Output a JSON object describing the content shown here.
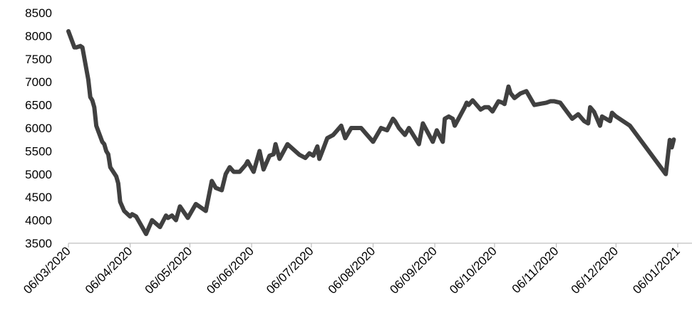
{
  "chart_data": {
    "type": "line",
    "title": "",
    "xlabel": "",
    "ylabel": "",
    "ylim": [
      3500,
      8500
    ],
    "yticks": [
      "3500",
      "4000",
      "4500",
      "5000",
      "5500",
      "6000",
      "6500",
      "7000",
      "7500",
      "8000",
      "8500"
    ],
    "xticks": [
      "06/03/2020",
      "06/04/2020",
      "06/05/2020",
      "06/06/2020",
      "06/07/2020",
      "06/08/2020",
      "06/09/2020",
      "06/10/2020",
      "06/11/2020",
      "06/12/2020",
      "06/01/2021"
    ],
    "grid": false,
    "legend": "none",
    "series_color": "#404040",
    "series": [
      {
        "x": [
          "2020-03-06",
          "2020-03-09",
          "2020-03-10",
          "2020-03-12",
          "2020-03-13",
          "2020-03-16",
          "2020-03-17",
          "2020-03-18",
          "2020-03-19",
          "2020-03-20",
          "2020-03-23",
          "2020-03-24",
          "2020-03-25",
          "2020-03-26",
          "2020-03-27",
          "2020-03-30",
          "2020-03-31",
          "2020-04-01",
          "2020-04-02",
          "2020-04-03",
          "2020-04-06",
          "2020-04-07",
          "2020-04-09",
          "2020-04-14",
          "2020-04-17",
          "2020-04-21",
          "2020-04-24",
          "2020-04-25",
          "2020-04-27",
          "2020-04-29",
          "2020-05-01",
          "2020-05-05",
          "2020-05-09",
          "2020-05-14",
          "2020-05-17",
          "2020-05-19",
          "2020-05-22",
          "2020-05-24",
          "2020-05-26",
          "2020-05-28",
          "2020-05-31",
          "2020-06-03",
          "2020-06-04",
          "2020-06-05",
          "2020-06-07",
          "2020-06-10",
          "2020-06-12",
          "2020-06-14",
          "2020-06-15",
          "2020-06-17",
          "2020-06-18",
          "2020-06-20",
          "2020-06-24",
          "2020-06-30",
          "2020-07-03",
          "2020-07-05",
          "2020-07-07",
          "2020-07-09",
          "2020-07-10",
          "2020-07-12",
          "2020-07-14",
          "2020-07-17",
          "2020-07-21",
          "2020-07-23",
          "2020-07-26",
          "2020-07-31",
          "2020-08-06",
          "2020-08-10",
          "2020-08-13",
          "2020-08-16",
          "2020-08-17",
          "2020-08-19",
          "2020-08-22",
          "2020-08-24",
          "2020-08-29",
          "2020-08-31",
          "2020-09-05",
          "2020-09-07",
          "2020-09-10",
          "2020-09-11",
          "2020-09-13",
          "2020-09-15",
          "2020-09-16",
          "2020-09-21",
          "2020-09-22",
          "2020-09-23",
          "2020-09-25",
          "2020-09-27",
          "2020-09-29",
          "2020-10-01",
          "2020-10-03",
          "2020-10-05",
          "2020-10-08",
          "2020-10-10",
          "2020-10-11",
          "2020-10-13",
          "2020-10-14",
          "2020-10-16",
          "2020-10-19",
          "2020-10-22",
          "2020-10-26",
          "2020-11-01",
          "2020-11-03",
          "2020-11-05",
          "2020-11-08",
          "2020-11-14",
          "2020-11-17",
          "2020-11-20",
          "2020-11-22",
          "2020-11-23",
          "2020-11-25",
          "2020-11-28",
          "2020-11-29",
          "2020-12-03",
          "2020-12-04",
          "2020-12-06",
          "2020-12-13",
          "2020-12-31",
          "2021-01-02",
          "2021-01-03",
          "2021-01-04"
        ],
        "values": [
          8100,
          7750,
          7750,
          7780,
          7750,
          7050,
          6670,
          6600,
          6450,
          6050,
          5700,
          5650,
          5500,
          5430,
          5150,
          4950,
          4800,
          4400,
          4300,
          4200,
          4080,
          4130,
          4080,
          3700,
          4000,
          3850,
          4100,
          4050,
          4100,
          4000,
          4300,
          4050,
          4350,
          4200,
          4850,
          4700,
          4650,
          5000,
          5150,
          5050,
          5050,
          5200,
          5280,
          5200,
          5050,
          5500,
          5100,
          5300,
          5400,
          5430,
          5650,
          5330,
          5650,
          5420,
          5350,
          5450,
          5400,
          5600,
          5330,
          5550,
          5780,
          5850,
          6050,
          5780,
          6000,
          6000,
          5700,
          6000,
          5950,
          6200,
          6150,
          6000,
          5850,
          6000,
          5650,
          6100,
          5700,
          5950,
          5700,
          6200,
          6250,
          6200,
          6050,
          6450,
          6550,
          6500,
          6600,
          6500,
          6400,
          6450,
          6450,
          6360,
          6580,
          6550,
          6520,
          6900,
          6760,
          6650,
          6750,
          6800,
          6500,
          6550,
          6580,
          6580,
          6550,
          6200,
          6300,
          6150,
          6100,
          6450,
          6350,
          6050,
          6250,
          6150,
          6330,
          6250,
          6050,
          5000,
          5740,
          5580,
          5750
        ]
      }
    ]
  }
}
